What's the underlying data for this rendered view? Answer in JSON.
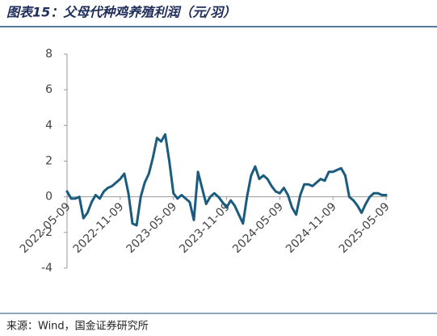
{
  "chart_data": {
    "type": "line",
    "title": "图表15：父母代种鸡养殖利润（元/羽）",
    "source": "来源：Wind，国金证券研究所",
    "categories": [
      "2022-05-09",
      null,
      null,
      null,
      null,
      null,
      null,
      null,
      null,
      null,
      null,
      null,
      null,
      "2022-11-09",
      null,
      null,
      null,
      null,
      null,
      null,
      null,
      null,
      null,
      null,
      null,
      null,
      "2023-05-09",
      null,
      null,
      null,
      null,
      null,
      null,
      null,
      null,
      null,
      null,
      null,
      null,
      "2023-11-09",
      null,
      null,
      null,
      null,
      null,
      null,
      null,
      null,
      null,
      null,
      null,
      null,
      "2024-05-09",
      null,
      null,
      null,
      null,
      null,
      null,
      null,
      null,
      null,
      null,
      null,
      null,
      "2024-11-09",
      null,
      null,
      null,
      null,
      null,
      null,
      null,
      null,
      null,
      null,
      null,
      null,
      "2025-05-09"
    ],
    "values": [
      0.3,
      -0.1,
      -0.1,
      0,
      -1.2,
      -0.9,
      -0.3,
      0.1,
      -0.1,
      0.3,
      0.5,
      0.6,
      0.8,
      1.0,
      1.3,
      0.2,
      -1.5,
      -1.6,
      0,
      0.8,
      1.3,
      2.2,
      3.3,
      3.1,
      3.5,
      2.0,
      0.2,
      -0.1,
      0.1,
      -0.1,
      -0.3,
      -1.3,
      1.4,
      0.5,
      -0.4,
      0,
      0.2,
      0,
      -0.3,
      -0.6,
      -0.2,
      -0.5,
      -1.0,
      -1.5,
      0,
      1.2,
      1.7,
      1.0,
      1.2,
      1.0,
      0.6,
      0.3,
      0.2,
      0.5,
      0.1,
      -0.6,
      -1.0,
      0.1,
      0.7,
      0.7,
      0.6,
      0.8,
      1.0,
      0.9,
      1.4,
      1.4,
      1.5,
      1.6,
      1.2,
      0,
      -0.2,
      -0.5,
      -0.9,
      -0.4,
      0,
      0.2,
      0.2,
      0.1,
      0.1
    ],
    "color": "#1b5b7e",
    "ylim": [
      -4,
      8
    ],
    "yticks": [
      -4,
      -2,
      0,
      2,
      4,
      6,
      8
    ],
    "grid": false
  }
}
